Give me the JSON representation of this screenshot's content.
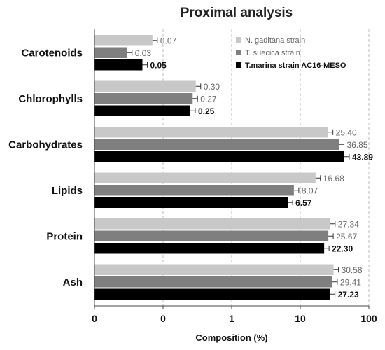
{
  "chart_data": {
    "type": "bar",
    "orientation": "horizontal",
    "title": "Proximal analysis",
    "xlabel": "Composition (%)",
    "ylabel": "",
    "x_scale": "log",
    "x_tick_labels": [
      "0",
      "0",
      "1",
      "10",
      "100"
    ],
    "xlim": [
      0.01,
      100
    ],
    "grid": "vertical dashed",
    "legend_position": "top-right",
    "categories": [
      "Carotenoids",
      "Chlorophylls",
      "Carbohydrates",
      "Lipids",
      "Protein",
      "Ash"
    ],
    "series": [
      {
        "name": "N. gaditana strain",
        "color": "#c8c8c8",
        "values": [
          0.07,
          0.3,
          25.4,
          16.68,
          27.34,
          30.58
        ],
        "labels": [
          "0.07",
          "0.30",
          "25.40",
          "16.68",
          "27.34",
          "30.58"
        ],
        "bold_labels": false
      },
      {
        "name": "T. suecica strain",
        "color": "#7f7f7f",
        "values": [
          0.03,
          0.27,
          36.85,
          8.07,
          25.67,
          29.41
        ],
        "labels": [
          "0.03",
          "0.27",
          "36.85",
          "8.07",
          "25.67",
          "29.41"
        ],
        "bold_labels": false
      },
      {
        "name": "T.marina strain AC16-MESO",
        "color": "#000000",
        "values": [
          0.05,
          0.25,
          43.89,
          6.57,
          22.3,
          27.23
        ],
        "labels": [
          "0.05",
          "0.25",
          "43.89",
          "6.57",
          "22.30",
          "27.23"
        ],
        "bold_labels": true
      }
    ]
  }
}
